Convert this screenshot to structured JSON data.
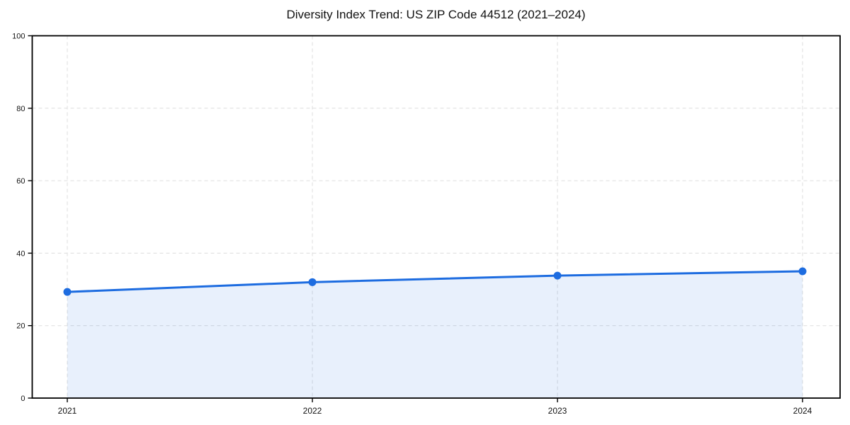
{
  "chart_data": {
    "type": "area",
    "title": "Diversity Index Trend: US ZIP Code 44512 (2021–2024)",
    "x": [
      "2021",
      "2022",
      "2023",
      "2024"
    ],
    "series": [
      {
        "name": "Diversity Index",
        "values": [
          29.3,
          32.0,
          33.8,
          35.0
        ]
      }
    ],
    "xlabel": "",
    "ylabel": "",
    "ylim": [
      0,
      100
    ],
    "yticks": [
      0,
      20,
      40,
      60,
      80,
      100
    ],
    "grid": "dashed, both axes",
    "legend": "none",
    "line_color": "#1d6ce0",
    "fill_color": "rgba(30, 108, 224, 0.10)",
    "grid_color": "#dddddd",
    "axis_color": "#000000",
    "text_color": "#111111",
    "background_color": "#ffffff"
  }
}
